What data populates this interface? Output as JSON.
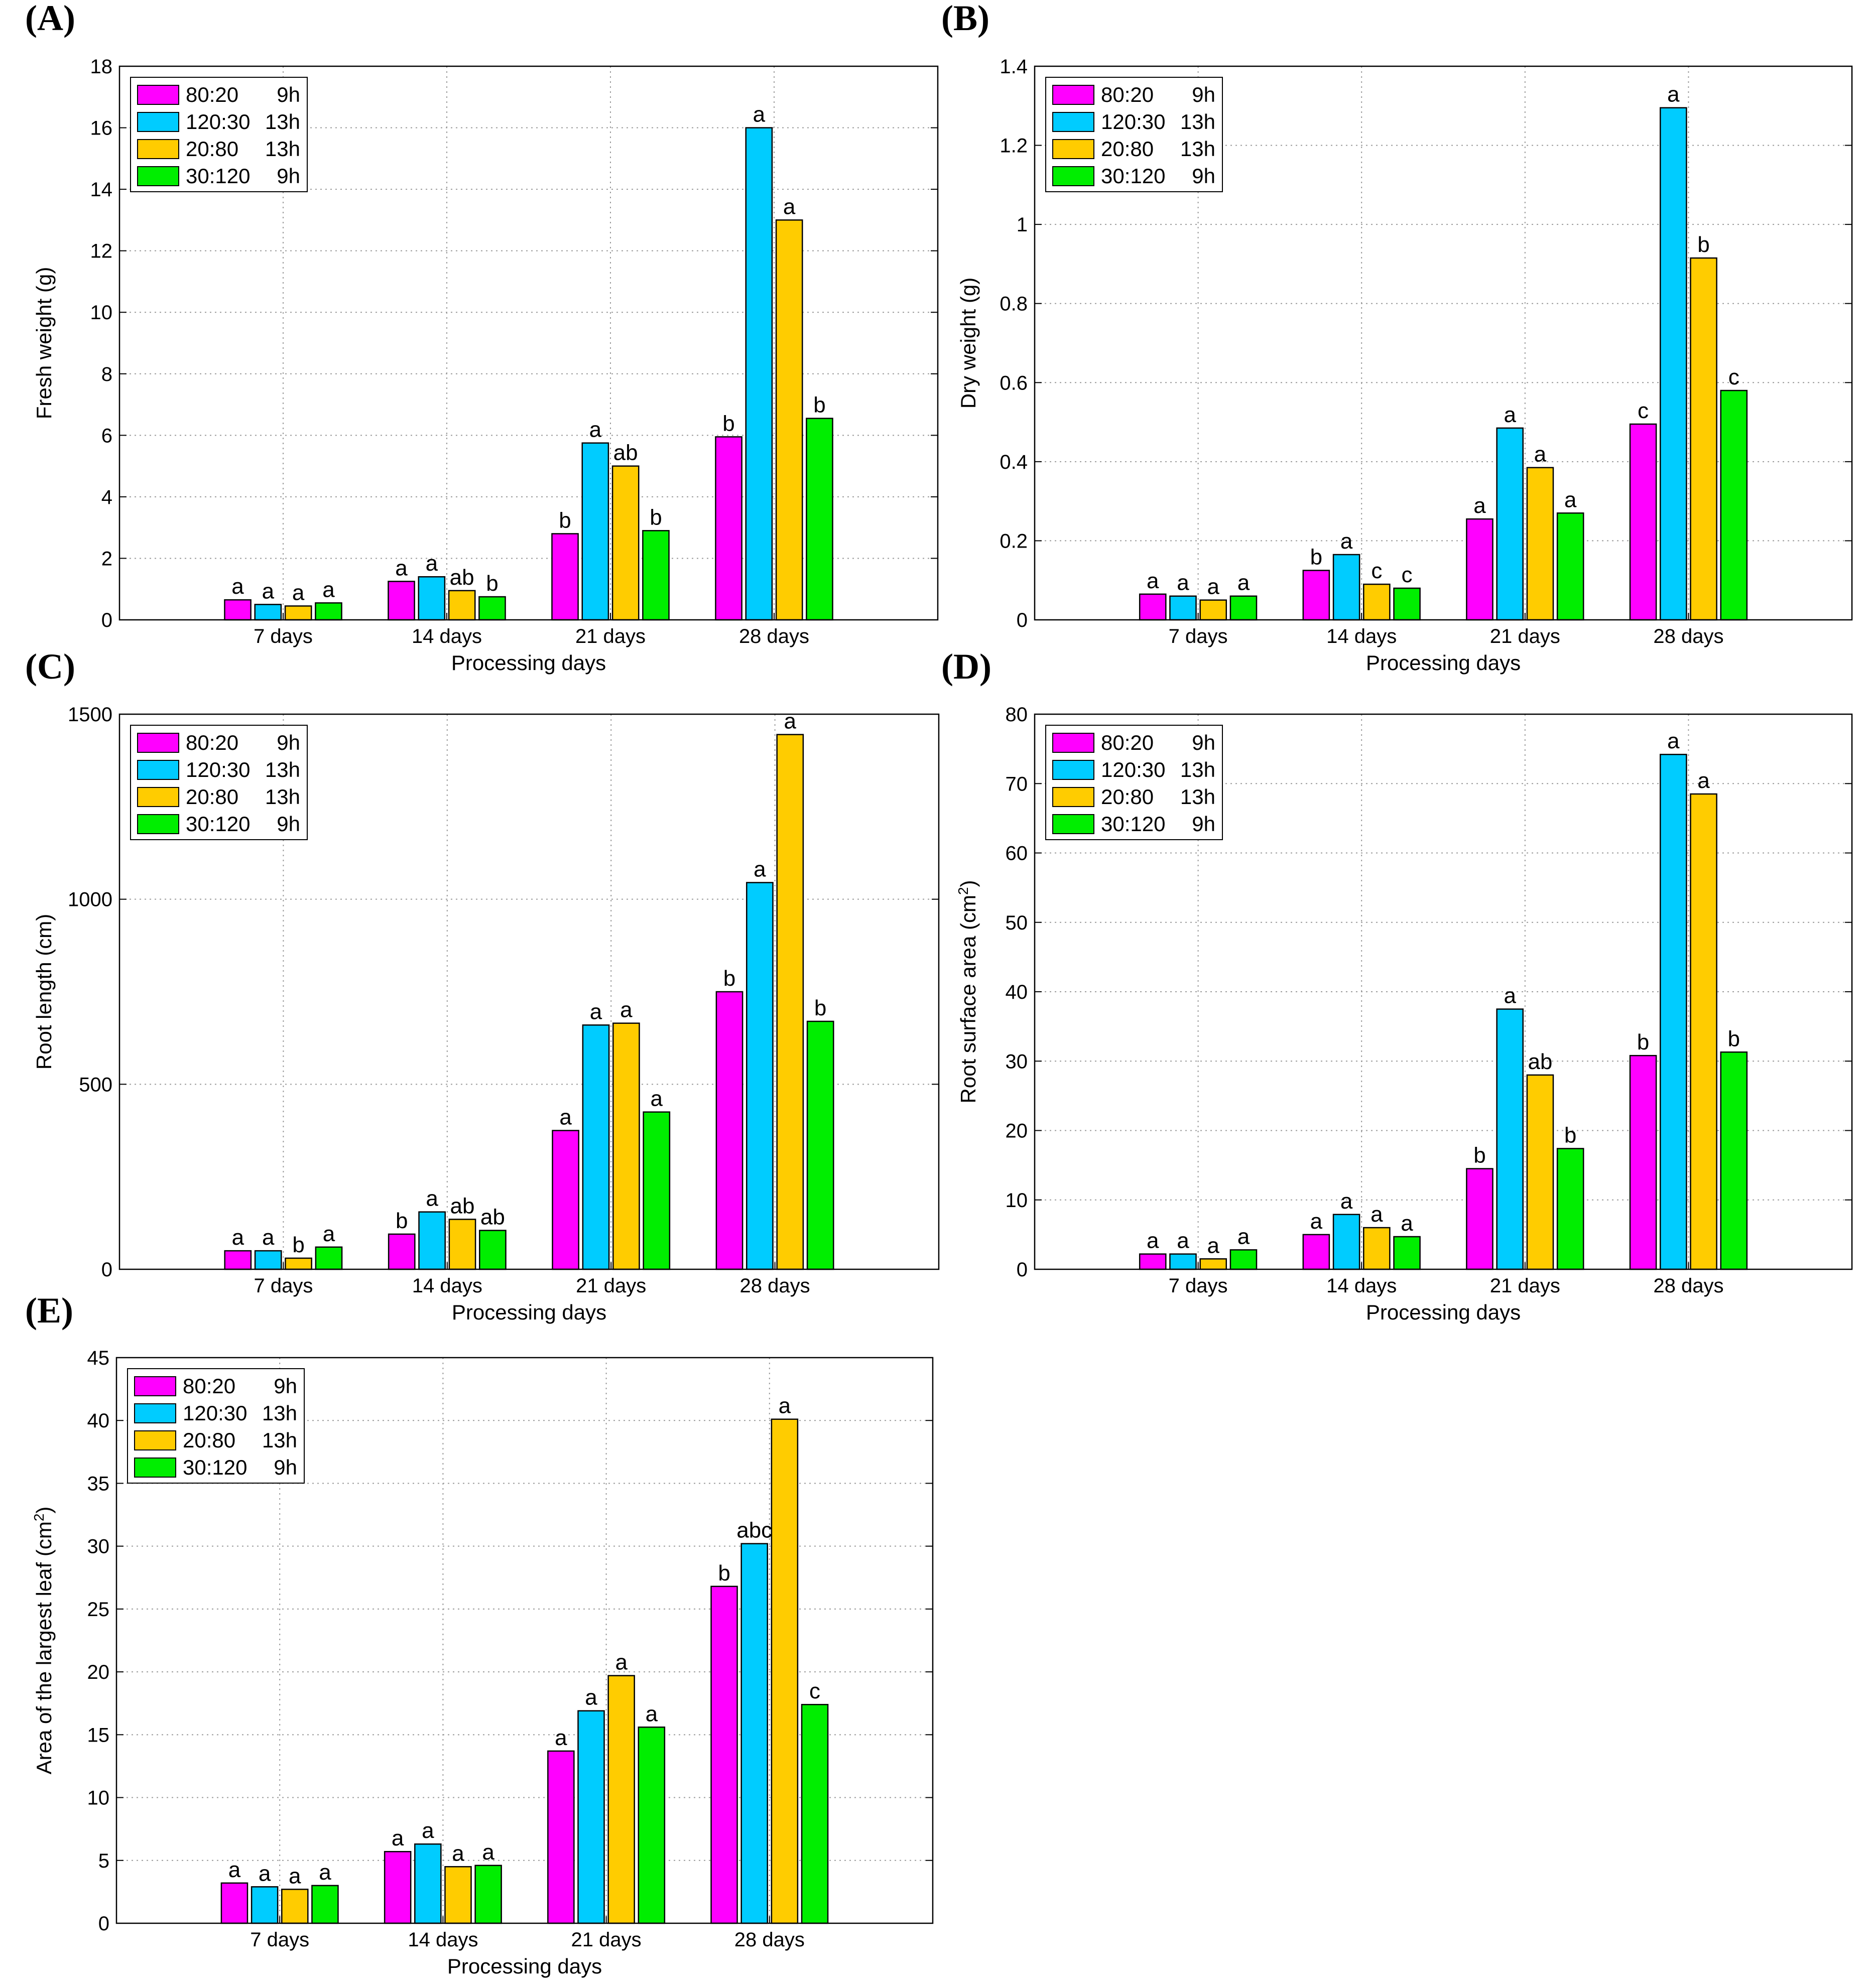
{
  "figure": {
    "colors": {
      "80:20 9h": "#ff00ff",
      "120:30 13h": "#00ccff",
      "20:80 13h": "#ffcc00",
      "30:120 9h": "#00ee00"
    },
    "legend": {
      "labels": [
        "80:20",
        "120:30",
        "20:80",
        "30:120"
      ],
      "hours": [
        "9h",
        "13h",
        "13h",
        "9h"
      ]
    }
  },
  "chart_data": [
    {
      "panel": "(A)",
      "type": "bar",
      "xlabel": "Processing days",
      "ylabel": "Fresh weight (g)",
      "ylim": [
        0,
        18
      ],
      "yticks": [
        "0",
        "2",
        "4",
        "6",
        "8",
        "10",
        "12",
        "14",
        "16",
        "18"
      ],
      "categories": [
        "7 days",
        "14 days",
        "21 days",
        "28 days"
      ],
      "grid": true,
      "legend_position": "top-left",
      "series": [
        {
          "name": "80:20 9h",
          "values": [
            0.65,
            1.25,
            2.8,
            5.95
          ],
          "labels": [
            "a",
            "a",
            "b",
            "b"
          ]
        },
        {
          "name": "120:30 13h",
          "values": [
            0.5,
            1.4,
            5.75,
            16.0
          ],
          "labels": [
            "a",
            "a",
            "a",
            "a"
          ]
        },
        {
          "name": "20:80 13h",
          "values": [
            0.45,
            0.95,
            5.0,
            13.0
          ],
          "labels": [
            "a",
            "ab",
            "ab",
            "a"
          ]
        },
        {
          "name": "30:120 9h",
          "values": [
            0.55,
            0.75,
            2.9,
            6.55
          ],
          "labels": [
            "a",
            "b",
            "b",
            "b"
          ]
        }
      ]
    },
    {
      "panel": "(B)",
      "type": "bar",
      "xlabel": "Processing days",
      "ylabel": "Dry weight (g)",
      "ylim": [
        0,
        1.4
      ],
      "yticks": [
        "0",
        "0.2",
        "0.4",
        "0.6",
        "0.8",
        "1",
        "1.2",
        "1.4"
      ],
      "categories": [
        "7 days",
        "14 days",
        "21 days",
        "28 days"
      ],
      "grid": true,
      "legend_position": "top-left",
      "series": [
        {
          "name": "80:20 9h",
          "values": [
            0.065,
            0.125,
            0.255,
            0.495
          ],
          "labels": [
            "a",
            "b",
            "a",
            "c"
          ]
        },
        {
          "name": "120:30 13h",
          "values": [
            0.06,
            0.165,
            0.485,
            1.295
          ],
          "labels": [
            "a",
            "a",
            "a",
            "a"
          ]
        },
        {
          "name": "20:80 13h",
          "values": [
            0.05,
            0.09,
            0.385,
            0.915
          ],
          "labels": [
            "a",
            "c",
            "a",
            "b"
          ]
        },
        {
          "name": "30:120 9h",
          "values": [
            0.06,
            0.08,
            0.27,
            0.58
          ],
          "labels": [
            "a",
            "c",
            "a",
            "c"
          ]
        }
      ]
    },
    {
      "panel": "(C)",
      "type": "bar",
      "xlabel": "Processing days",
      "ylabel": "Root length (cm)",
      "ylim": [
        0,
        1500
      ],
      "yticks": [
        "0",
        "500",
        "1000",
        "1500"
      ],
      "grid_values": [
        0,
        500,
        1000,
        1500
      ],
      "categories": [
        "7 days",
        "14 days",
        "21 days",
        "28 days"
      ],
      "grid": true,
      "legend_position": "top-left",
      "series": [
        {
          "name": "80:20 9h",
          "values": [
            50,
            95,
            375,
            750
          ],
          "labels": [
            "a",
            "b",
            "a",
            "b"
          ]
        },
        {
          "name": "120:30 13h",
          "values": [
            50,
            155,
            660,
            1045
          ],
          "labels": [
            "a",
            "a",
            "a",
            "a"
          ]
        },
        {
          "name": "20:80 13h",
          "values": [
            30,
            135,
            665,
            1445
          ],
          "labels": [
            "b",
            "ab",
            "a",
            "a"
          ]
        },
        {
          "name": "30:120 9h",
          "values": [
            60,
            105,
            425,
            670
          ],
          "labels": [
            "a",
            "ab",
            "a",
            "b"
          ]
        }
      ]
    },
    {
      "panel": "(D)",
      "type": "bar",
      "xlabel": "Processing days",
      "ylabel": "Root surface area (cm",
      "ylabel_superscript": "2",
      "ylabel_suffix": ")",
      "ylim": [
        0,
        80
      ],
      "yticks": [
        "0",
        "10",
        "20",
        "30",
        "40",
        "50",
        "60",
        "70",
        "80"
      ],
      "categories": [
        "7 days",
        "14 days",
        "21 days",
        "28 days"
      ],
      "grid": true,
      "legend_position": "top-left",
      "series": [
        {
          "name": "80:20 9h",
          "values": [
            2.2,
            5.0,
            14.5,
            30.8
          ],
          "labels": [
            "a",
            "a",
            "b",
            "b"
          ]
        },
        {
          "name": "120:30 13h",
          "values": [
            2.2,
            7.9,
            37.5,
            74.2
          ],
          "labels": [
            "a",
            "a",
            "a",
            "a"
          ]
        },
        {
          "name": "20:80 13h",
          "values": [
            1.5,
            6.0,
            28.0,
            68.5
          ],
          "labels": [
            "a",
            "a",
            "ab",
            "a"
          ]
        },
        {
          "name": "30:120 9h",
          "values": [
            2.8,
            4.7,
            17.4,
            31.3
          ],
          "labels": [
            "a",
            "a",
            "b",
            "b"
          ]
        }
      ]
    },
    {
      "panel": "(E)",
      "type": "bar",
      "xlabel": "Processing days",
      "ylabel": "Area of the largest leaf (cm",
      "ylabel_superscript": "2",
      "ylabel_suffix": ")",
      "ylim": [
        0,
        45
      ],
      "yticks": [
        "0",
        "5",
        "10",
        "15",
        "20",
        "25",
        "30",
        "35",
        "40",
        "45"
      ],
      "categories": [
        "7 days",
        "14 days",
        "21 days",
        "28 days"
      ],
      "grid": true,
      "legend_position": "top-left",
      "series": [
        {
          "name": "80:20 9h",
          "values": [
            3.2,
            5.7,
            13.7,
            26.8
          ],
          "labels": [
            "a",
            "a",
            "a",
            "b"
          ]
        },
        {
          "name": "120:30 13h",
          "values": [
            2.9,
            6.3,
            16.9,
            30.2
          ],
          "labels": [
            "a",
            "a",
            "a",
            "abc"
          ]
        },
        {
          "name": "20:80 13h",
          "values": [
            2.7,
            4.5,
            19.7,
            40.1
          ],
          "labels": [
            "a",
            "a",
            "a",
            "a"
          ]
        },
        {
          "name": "30:120 9h",
          "values": [
            3.0,
            4.6,
            15.6,
            17.4
          ],
          "labels": [
            "a",
            "a",
            "a",
            "c"
          ]
        }
      ]
    }
  ]
}
